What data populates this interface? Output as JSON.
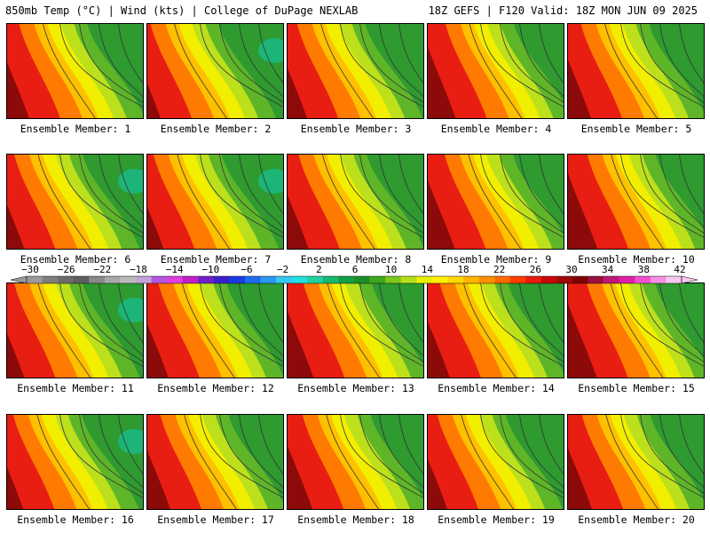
{
  "header": {
    "left": "850mb Temp (°C) | Wind (kts) | College of DuPage NEXLAB",
    "right": "18Z GEFS | F120 Valid: 18Z MON JUN 09 2025"
  },
  "colorbar": {
    "labels": [
      "-30",
      "-26",
      "-22",
      "-18",
      "-14",
      "-10",
      "-6",
      "-2",
      "2",
      "6",
      "10",
      "14",
      "18",
      "22",
      "26",
      "30",
      "34",
      "38",
      "42"
    ],
    "colors": [
      "#9a9a9a",
      "#7e7e7e",
      "#6b6b6b",
      "#5f5f5f",
      "#8a8a8a",
      "#a7a7a7",
      "#b9b9b9",
      "#c5a2d8",
      "#b455e0",
      "#e040e0",
      "#c020c8",
      "#7020c8",
      "#3a20c8",
      "#1a3ae0",
      "#1c6bf0",
      "#2a98f0",
      "#35c8f0",
      "#22e0e0",
      "#20d0a0",
      "#18b870",
      "#139e48",
      "#1c8e28",
      "#3ea81c",
      "#7cc81c",
      "#b4e018",
      "#e8f000",
      "#fff000",
      "#ffd800",
      "#ffb400",
      "#ff9000",
      "#ff6a00",
      "#ff3c00",
      "#e81c10",
      "#c80808",
      "#a00808",
      "#800000",
      "#9a1040",
      "#c01878",
      "#e020a8",
      "#f050d0",
      "#f890e0",
      "#f8c8f0"
    ],
    "left_arrow_color": "#999999",
    "right_arrow_color": "#f8c8f0"
  },
  "members": [
    {
      "label": "Ensemble Member: 1",
      "warm": 0.6
    },
    {
      "label": "Ensemble Member: 2",
      "warm": 0.42
    },
    {
      "label": "Ensemble Member: 3",
      "warm": 0.55
    },
    {
      "label": "Ensemble Member: 4",
      "warm": 0.72
    },
    {
      "label": "Ensemble Member: 5",
      "warm": 0.62
    },
    {
      "label": "Ensemble Member: 6",
      "warm": 0.5
    },
    {
      "label": "Ensemble Member: 7",
      "warm": 0.48
    },
    {
      "label": "Ensemble Member: 8",
      "warm": 0.58
    },
    {
      "label": "Ensemble Member: 9",
      "warm": 0.7
    },
    {
      "label": "Ensemble Member: 10",
      "warm": 0.75
    },
    {
      "label": "Ensemble Member: 11",
      "warm": 0.5
    },
    {
      "label": "Ensemble Member: 12",
      "warm": 0.58
    },
    {
      "label": "Ensemble Member: 13",
      "warm": 0.68
    },
    {
      "label": "Ensemble Member: 14",
      "warm": 0.6
    },
    {
      "label": "Ensemble Member: 15",
      "warm": 0.74
    },
    {
      "label": "Ensemble Member: 16",
      "warm": 0.48
    },
    {
      "label": "Ensemble Member: 17",
      "warm": 0.62
    },
    {
      "label": "Ensemble Member: 18",
      "warm": 0.66
    },
    {
      "label": "Ensemble Member: 19",
      "warm": 0.55
    },
    {
      "label": "Ensemble Member: 20",
      "warm": 0.64
    }
  ],
  "palette": {
    "hot": "#8c0a0a",
    "red": "#e81e12",
    "orange": "#ff7a00",
    "yellow_orange": "#ffc000",
    "yellow": "#f2ee00",
    "yellow_green": "#bce01c",
    "green": "#5fb528",
    "dark_green": "#2e9a30",
    "teal": "#1cb880",
    "contour": "#333333"
  }
}
